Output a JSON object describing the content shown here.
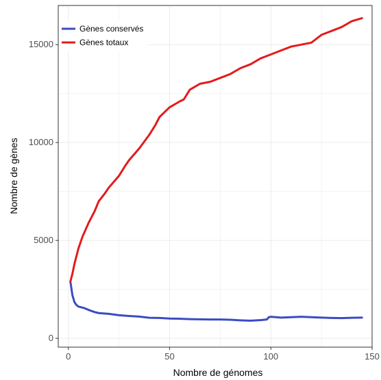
{
  "chart_data": {
    "type": "line",
    "title": "",
    "xlabel": "Nombre de génomes",
    "ylabel": "Nombre de gènes",
    "xlim": [
      -5,
      150
    ],
    "ylim": [
      -450,
      17000
    ],
    "x_ticks": [
      0,
      50,
      100,
      150
    ],
    "y_ticks": [
      0,
      5000,
      10000,
      15000
    ],
    "x_tick_labels": [
      "0",
      "50",
      "100",
      "150"
    ],
    "y_tick_labels": [
      "0",
      "5000",
      "10000",
      "15000"
    ],
    "grid": true,
    "legend_position": "top-left",
    "series": [
      {
        "name": "Gènes conservés",
        "color": "#3a4bc3",
        "points": [
          [
            1,
            2900
          ],
          [
            2,
            2200
          ],
          [
            3,
            1850
          ],
          [
            4,
            1700
          ],
          [
            5,
            1620
          ],
          [
            8,
            1540
          ],
          [
            10,
            1450
          ],
          [
            13,
            1340
          ],
          [
            15,
            1290
          ],
          [
            20,
            1250
          ],
          [
            25,
            1180
          ],
          [
            30,
            1140
          ],
          [
            35,
            1110
          ],
          [
            40,
            1050
          ],
          [
            45,
            1040
          ],
          [
            50,
            1010
          ],
          [
            55,
            1000
          ],
          [
            60,
            980
          ],
          [
            65,
            970
          ],
          [
            70,
            960
          ],
          [
            75,
            960
          ],
          [
            80,
            950
          ],
          [
            85,
            920
          ],
          [
            90,
            900
          ],
          [
            95,
            930
          ],
          [
            98,
            960
          ],
          [
            99,
            1080
          ],
          [
            100,
            1100
          ],
          [
            105,
            1060
          ],
          [
            110,
            1080
          ],
          [
            115,
            1100
          ],
          [
            120,
            1080
          ],
          [
            125,
            1060
          ],
          [
            130,
            1040
          ],
          [
            135,
            1030
          ],
          [
            140,
            1050
          ],
          [
            145,
            1060
          ]
        ]
      },
      {
        "name": "Gènes totaux",
        "color": "#e31a1c",
        "points": [
          [
            1,
            2900
          ],
          [
            2,
            3300
          ],
          [
            3,
            3800
          ],
          [
            4,
            4200
          ],
          [
            5,
            4600
          ],
          [
            7,
            5200
          ],
          [
            10,
            5900
          ],
          [
            13,
            6500
          ],
          [
            15,
            7000
          ],
          [
            18,
            7400
          ],
          [
            20,
            7700
          ],
          [
            25,
            8300
          ],
          [
            28,
            8800
          ],
          [
            30,
            9100
          ],
          [
            35,
            9700
          ],
          [
            40,
            10400
          ],
          [
            43,
            10900
          ],
          [
            45,
            11300
          ],
          [
            50,
            11800
          ],
          [
            55,
            12100
          ],
          [
            57,
            12200
          ],
          [
            60,
            12700
          ],
          [
            65,
            13000
          ],
          [
            70,
            13100
          ],
          [
            75,
            13300
          ],
          [
            80,
            13500
          ],
          [
            85,
            13800
          ],
          [
            90,
            14000
          ],
          [
            95,
            14300
          ],
          [
            100,
            14500
          ],
          [
            105,
            14700
          ],
          [
            110,
            14900
          ],
          [
            115,
            15000
          ],
          [
            120,
            15100
          ],
          [
            125,
            15500
          ],
          [
            130,
            15700
          ],
          [
            135,
            15900
          ],
          [
            140,
            16200
          ],
          [
            145,
            16350
          ]
        ]
      }
    ]
  }
}
